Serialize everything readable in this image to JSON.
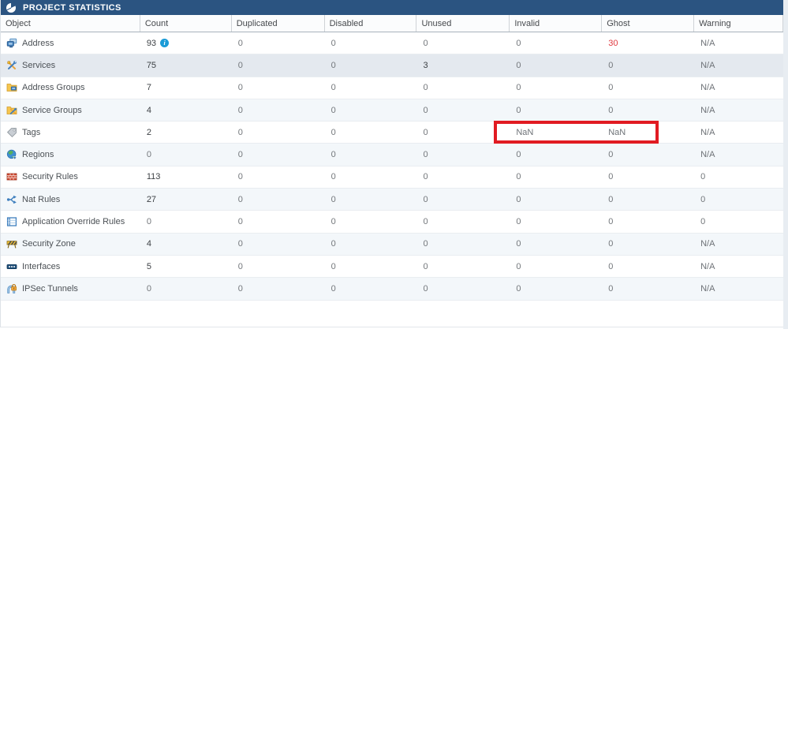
{
  "panel": {
    "title": "PROJECT STATISTICS",
    "title_icon": "pie-chart-icon"
  },
  "colors": {
    "title_bar": "#2b5481",
    "highlight_red": "#e11b22",
    "count_red": "#e03a40",
    "info_blue": "#1a9bd7"
  },
  "table": {
    "columns": [
      "Object",
      "Count",
      "Duplicated",
      "Disabled",
      "Unused",
      "Invalid",
      "Ghost",
      "Warning"
    ],
    "rows": [
      {
        "label": "Address",
        "icon": "address-icon",
        "cells": [
          {
            "v": "93",
            "info": true
          },
          {
            "v": "0"
          },
          {
            "v": "0"
          },
          {
            "v": "0"
          },
          {
            "v": "0"
          },
          {
            "v": "30",
            "c": "red"
          },
          {
            "v": "N/A"
          }
        ]
      },
      {
        "label": "Services",
        "icon": "services-icon",
        "highlighted": true,
        "cells": [
          {
            "v": "75"
          },
          {
            "v": "0"
          },
          {
            "v": "0"
          },
          {
            "v": "3"
          },
          {
            "v": "0"
          },
          {
            "v": "0"
          },
          {
            "v": "N/A"
          }
        ]
      },
      {
        "label": "Address Groups",
        "icon": "address-groups-icon",
        "cells": [
          {
            "v": "7"
          },
          {
            "v": "0"
          },
          {
            "v": "0"
          },
          {
            "v": "0"
          },
          {
            "v": "0"
          },
          {
            "v": "0"
          },
          {
            "v": "N/A"
          }
        ]
      },
      {
        "label": "Service Groups",
        "icon": "service-groups-icon",
        "cells": [
          {
            "v": "4"
          },
          {
            "v": "0"
          },
          {
            "v": "0"
          },
          {
            "v": "0"
          },
          {
            "v": "0"
          },
          {
            "v": "0"
          },
          {
            "v": "N/A"
          }
        ]
      },
      {
        "label": "Tags",
        "icon": "tags-icon",
        "annotated": true,
        "cells": [
          {
            "v": "2"
          },
          {
            "v": "0"
          },
          {
            "v": "0"
          },
          {
            "v": "0"
          },
          {
            "v": "NaN"
          },
          {
            "v": "NaN"
          },
          {
            "v": "N/A"
          }
        ]
      },
      {
        "label": "Regions",
        "icon": "regions-icon",
        "cells": [
          {
            "v": "0"
          },
          {
            "v": "0"
          },
          {
            "v": "0"
          },
          {
            "v": "0"
          },
          {
            "v": "0"
          },
          {
            "v": "0"
          },
          {
            "v": "N/A"
          }
        ]
      },
      {
        "label": "Security Rules",
        "icon": "security-rules-icon",
        "cells": [
          {
            "v": "113"
          },
          {
            "v": "0"
          },
          {
            "v": "0"
          },
          {
            "v": "0"
          },
          {
            "v": "0"
          },
          {
            "v": "0"
          },
          {
            "v": "0"
          }
        ]
      },
      {
        "label": "Nat Rules",
        "icon": "nat-rules-icon",
        "cells": [
          {
            "v": "27"
          },
          {
            "v": "0"
          },
          {
            "v": "0"
          },
          {
            "v": "0"
          },
          {
            "v": "0"
          },
          {
            "v": "0"
          },
          {
            "v": "0"
          }
        ]
      },
      {
        "label": "Application Override Rules",
        "icon": "application-override-rules-icon",
        "cells": [
          {
            "v": "0"
          },
          {
            "v": "0"
          },
          {
            "v": "0"
          },
          {
            "v": "0"
          },
          {
            "v": "0"
          },
          {
            "v": "0"
          },
          {
            "v": "0"
          }
        ]
      },
      {
        "label": "Security Zone",
        "icon": "security-zone-icon",
        "cells": [
          {
            "v": "4"
          },
          {
            "v": "0"
          },
          {
            "v": "0"
          },
          {
            "v": "0"
          },
          {
            "v": "0"
          },
          {
            "v": "0"
          },
          {
            "v": "N/A"
          }
        ]
      },
      {
        "label": "Interfaces",
        "icon": "interfaces-icon",
        "cells": [
          {
            "v": "5"
          },
          {
            "v": "0"
          },
          {
            "v": "0"
          },
          {
            "v": "0"
          },
          {
            "v": "0"
          },
          {
            "v": "0"
          },
          {
            "v": "N/A"
          }
        ]
      },
      {
        "label": "IPSec Tunnels",
        "icon": "ipsec-tunnels-icon",
        "cells": [
          {
            "v": "0"
          },
          {
            "v": "0"
          },
          {
            "v": "0"
          },
          {
            "v": "0"
          },
          {
            "v": "0"
          },
          {
            "v": "0"
          },
          {
            "v": "N/A"
          }
        ]
      }
    ]
  },
  "annotation": {
    "shape": "rectangle",
    "color": "#e11b22",
    "highlights": "NaN values in Invalid and Ghost columns of Tags row"
  }
}
